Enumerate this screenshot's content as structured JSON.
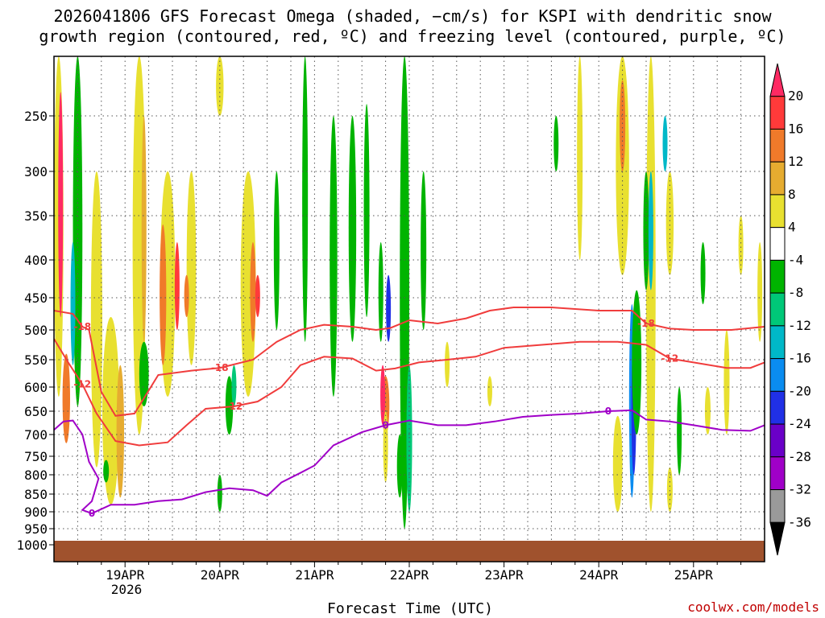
{
  "chart_data": {
    "type": "heatmap",
    "title": "2026041806 GFS Forecast Omega (shaded, −cm/s) for KSPI with dendritic snow growth region (contoured, red, ºC) and freezing level (contoured, purple, ºC)",
    "title_lines": [
      "2026041806 GFS Forecast Omega (shaded, −cm/s) for KSPI with dendritic snow",
      "growth region (contoured, red, ºC) and freezing level (contoured, purple, ºC)"
    ],
    "xlabel": "Forecast Time (UTC)",
    "ylabel": "",
    "x_ticks": [
      "19APR",
      "20APR",
      "21APR",
      "22APR",
      "23APR",
      "24APR",
      "25APR"
    ],
    "x_sub_label": "2026",
    "x_range_days": [
      18.25,
      25.75
    ],
    "y_ticks": [
      250,
      300,
      350,
      400,
      450,
      500,
      550,
      600,
      650,
      700,
      750,
      800,
      850,
      900,
      950,
      1000
    ],
    "y_range_hpa": [
      200,
      1000
    ],
    "grid": true,
    "colorbar": {
      "labels": [
        "20",
        "16",
        "12",
        "8",
        "4",
        "-4",
        "-8",
        "-12",
        "-16",
        "-20",
        "-24",
        "-28",
        "-32",
        "-36"
      ],
      "colors": [
        "#ff2a63",
        "#ff3a3a",
        "#f07a2a",
        "#e6ac30",
        "#e8e030",
        "#ffffff",
        "#00b400",
        "#00c878",
        "#00b8c8",
        "#0a8cf0",
        "#2030e6",
        "#6a00c8",
        "#a000c8",
        "#9a9a9a",
        "#000000"
      ]
    },
    "series": [
      {
        "name": "-18",
        "color": "#f03c3c",
        "points": [
          [
            18.25,
            470
          ],
          [
            18.45,
            475
          ],
          [
            18.55,
            495
          ],
          [
            18.62,
            500
          ],
          [
            18.75,
            610
          ],
          [
            18.9,
            660
          ],
          [
            19.1,
            655
          ],
          [
            19.35,
            578
          ],
          [
            19.7,
            570
          ],
          [
            20.0,
            565
          ],
          [
            20.35,
            550
          ],
          [
            20.6,
            520
          ],
          [
            20.85,
            500
          ],
          [
            21.1,
            492
          ],
          [
            21.4,
            495
          ],
          [
            21.65,
            500
          ],
          [
            21.8,
            497
          ],
          [
            22.0,
            485
          ],
          [
            22.3,
            490
          ],
          [
            22.6,
            482
          ],
          [
            22.85,
            470
          ],
          [
            23.1,
            465
          ],
          [
            23.5,
            465
          ],
          [
            24.0,
            470
          ],
          [
            24.35,
            470
          ],
          [
            24.5,
            490
          ],
          [
            24.75,
            498
          ],
          [
            25.0,
            500
          ],
          [
            25.4,
            500
          ],
          [
            25.75,
            495
          ]
        ]
      },
      {
        "name": "-12",
        "color": "#f03c3c",
        "points": [
          [
            18.25,
            515
          ],
          [
            18.4,
            555
          ],
          [
            18.55,
            595
          ],
          [
            18.7,
            655
          ],
          [
            18.9,
            715
          ],
          [
            19.15,
            725
          ],
          [
            19.45,
            718
          ],
          [
            19.65,
            680
          ],
          [
            19.85,
            645
          ],
          [
            20.15,
            640
          ],
          [
            20.4,
            630
          ],
          [
            20.65,
            600
          ],
          [
            20.85,
            560
          ],
          [
            21.1,
            545
          ],
          [
            21.4,
            548
          ],
          [
            21.65,
            570
          ],
          [
            21.85,
            566
          ],
          [
            22.1,
            555
          ],
          [
            22.4,
            550
          ],
          [
            22.7,
            545
          ],
          [
            23.0,
            530
          ],
          [
            23.4,
            525
          ],
          [
            23.8,
            520
          ],
          [
            24.2,
            520
          ],
          [
            24.5,
            525
          ],
          [
            24.75,
            548
          ],
          [
            25.0,
            555
          ],
          [
            25.35,
            565
          ],
          [
            25.6,
            565
          ],
          [
            25.75,
            555
          ]
        ]
      },
      {
        "name": "0",
        "color": "#a000c8",
        "points": [
          [
            18.25,
            690
          ],
          [
            18.35,
            672
          ],
          [
            18.45,
            670
          ],
          [
            18.55,
            700
          ],
          [
            18.62,
            765
          ],
          [
            18.72,
            810
          ],
          [
            18.65,
            870
          ],
          [
            18.55,
            895
          ],
          [
            18.65,
            905
          ],
          [
            18.85,
            880
          ],
          [
            19.1,
            880
          ],
          [
            19.35,
            870
          ],
          [
            19.6,
            865
          ],
          [
            19.85,
            845
          ],
          [
            20.1,
            835
          ],
          [
            20.35,
            840
          ],
          [
            20.5,
            855
          ],
          [
            20.65,
            820
          ],
          [
            20.85,
            795
          ],
          [
            21.0,
            775
          ],
          [
            21.2,
            725
          ],
          [
            21.5,
            695
          ],
          [
            21.75,
            680
          ],
          [
            22.0,
            670
          ],
          [
            22.3,
            680
          ],
          [
            22.6,
            680
          ],
          [
            22.9,
            672
          ],
          [
            23.2,
            662
          ],
          [
            23.5,
            658
          ],
          [
            23.8,
            655
          ],
          [
            24.1,
            650
          ],
          [
            24.35,
            648
          ],
          [
            24.5,
            668
          ],
          [
            24.75,
            672
          ],
          [
            25.0,
            680
          ],
          [
            25.3,
            690
          ],
          [
            25.6,
            692
          ],
          [
            25.75,
            680
          ]
        ]
      }
    ]
  }
}
